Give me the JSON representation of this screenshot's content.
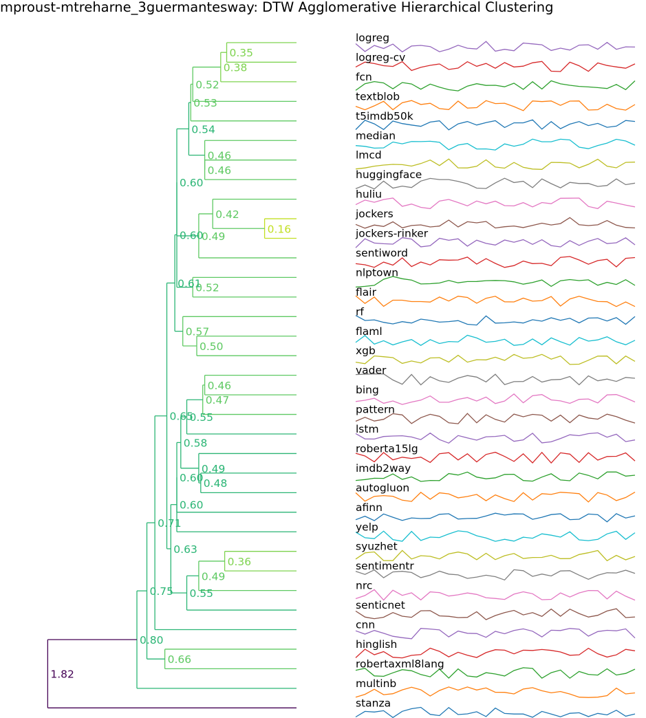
{
  "title": "mproust-mtreharne_3guermantesway: DTW Agglomerative Hierarchical Clustering",
  "chart_data": {
    "type": "dendrogram",
    "title": "mproust-mtreharne_3guermantesway: DTW Agglomerative Hierarchical Clustering",
    "leaves": [
      "logreg",
      "logreg-cv",
      "fcn",
      "textblob",
      "t5imdb50k",
      "median",
      "lmcd",
      "huggingface",
      "huliu",
      "jockers",
      "jockers-rinker",
      "sentiword",
      "nlptown",
      "flair",
      "rf",
      "flaml",
      "xgb",
      "vader",
      "bing",
      "pattern",
      "lstm",
      "roberta15lg",
      "imdb2way",
      "autogluon",
      "afinn",
      "yelp",
      "syuzhet",
      "sentimentr",
      "nrc",
      "senticnet",
      "cnn",
      "hinglish",
      "robertaxml8lang",
      "multinb",
      "stanza"
    ],
    "merges": [
      {
        "id": "N1",
        "a": "logreg",
        "b": "logreg-cv",
        "distance": 0.35,
        "label": "0.35"
      },
      {
        "id": "N2",
        "a": "N1",
        "b": "fcn",
        "distance": 0.38,
        "label": "0.38"
      },
      {
        "id": "N3",
        "a": "N2",
        "b": "textblob",
        "distance": 0.52,
        "label": "0.52"
      },
      {
        "id": "N4",
        "a": "N3",
        "b": "t5imdb50k",
        "distance": 0.53,
        "label": "0.53"
      },
      {
        "id": "N5",
        "a": "lmcd",
        "b": "huggingface",
        "distance": 0.46,
        "label": "0.46"
      },
      {
        "id": "N6",
        "a": "median",
        "b": "N5",
        "distance": 0.46,
        "label": "0.46"
      },
      {
        "id": "N7",
        "a": "N4",
        "b": "N6",
        "distance": 0.54,
        "label": "0.54"
      },
      {
        "id": "N8",
        "a": "jockers",
        "b": "jockers-rinker",
        "distance": 0.16,
        "label": "0.16"
      },
      {
        "id": "N9",
        "a": "huliu",
        "b": "N8",
        "distance": 0.42,
        "label": "0.42"
      },
      {
        "id": "N10",
        "a": "N9",
        "b": "sentiword",
        "distance": 0.49,
        "label": "0.49"
      },
      {
        "id": "N11",
        "a": "N7",
        "b": "N10",
        "distance": 0.6,
        "label": "0.60"
      },
      {
        "id": "N12",
        "a": "nlptown",
        "b": "flair",
        "distance": 0.52,
        "label": "0.52"
      },
      {
        "id": "N13",
        "a": "N11",
        "b": "N12",
        "distance": 0.6,
        "label": "0.60"
      },
      {
        "id": "N14",
        "a": "flaml",
        "b": "xgb",
        "distance": 0.5,
        "label": "0.50"
      },
      {
        "id": "N15",
        "a": "rf",
        "b": "N14",
        "distance": 0.57,
        "label": "0.57"
      },
      {
        "id": "N16",
        "a": "N13",
        "b": "N15",
        "distance": 0.61,
        "label": "0.61"
      },
      {
        "id": "N17",
        "a": "vader",
        "b": "bing",
        "distance": 0.46,
        "label": "0.46"
      },
      {
        "id": "N18",
        "a": "N17",
        "b": "pattern",
        "distance": 0.47,
        "label": "0.47"
      },
      {
        "id": "N19",
        "a": "N18",
        "b": "lstm",
        "distance": 0.55,
        "label": "0.55"
      },
      {
        "id": "N20",
        "a": "imdb2way",
        "b": "autogluon",
        "distance": 0.48,
        "label": "0.48"
      },
      {
        "id": "N21",
        "a": "roberta15lg",
        "b": "N20",
        "distance": 0.49,
        "label": "0.49"
      },
      {
        "id": "N22",
        "a": "N19",
        "b": "N21",
        "distance": 0.58,
        "label": "0.58"
      },
      {
        "id": "N23",
        "a": "N22",
        "b": "afinn",
        "distance": 0.6,
        "label": "0.60"
      },
      {
        "id": "N24",
        "a": "N23",
        "b": "yelp",
        "distance": 0.6,
        "label": "0.60"
      },
      {
        "id": "N25",
        "a": "syuzhet",
        "b": "sentimentr",
        "distance": 0.36,
        "label": "0.36"
      },
      {
        "id": "N26",
        "a": "N25",
        "b": "nrc",
        "distance": 0.49,
        "label": "0.49"
      },
      {
        "id": "N27",
        "a": "N26",
        "b": "senticnet",
        "distance": 0.55,
        "label": "0.55"
      },
      {
        "id": "N28",
        "a": "N24",
        "b": "N27",
        "distance": 0.63,
        "label": "0.63"
      },
      {
        "id": "N29",
        "a": "N16",
        "b": "N28",
        "distance": 0.65,
        "label": "0.65"
      },
      {
        "id": "N30",
        "a": "N29",
        "b": "cnn",
        "distance": 0.71,
        "label": "0.71"
      },
      {
        "id": "N31",
        "a": "hinglish",
        "b": "robertaxml8lang",
        "distance": 0.66,
        "label": "0.66"
      },
      {
        "id": "N32",
        "a": "N30",
        "b": "N31",
        "distance": 0.75,
        "label": "0.75"
      },
      {
        "id": "N33",
        "a": "N32",
        "b": "multinb",
        "distance": 0.8,
        "label": "0.80"
      },
      {
        "id": "N34",
        "a": "N33",
        "b": "stanza",
        "distance": 1.82,
        "label": "1.82"
      }
    ],
    "colors": {
      "main": "#2ab574",
      "light_green": "#7ed34f",
      "mid_green": "#5ec962",
      "yellow_green": "#c2df23",
      "root": "#440154",
      "leaf_line_palette": [
        "#9467bd",
        "#d62728",
        "#2ca02c",
        "#ff7f0e",
        "#1f77b4",
        "#17becf",
        "#bcbd22",
        "#7f7f7f",
        "#e377c2",
        "#8c564b"
      ]
    },
    "node_colors": {
      "N1": "light_green",
      "N2": "light_green",
      "N3": "mid_green",
      "N4": "mid_green",
      "N5": "mid_green",
      "N6": "mid_green",
      "N8": "yellow_green",
      "N9": "mid_green",
      "N10": "mid_green",
      "N12": "mid_green",
      "N14": "mid_green",
      "N15": "mid_green",
      "N17": "mid_green",
      "N18": "mid_green",
      "N25": "light_green",
      "N26": "mid_green",
      "N31": "mid_green",
      "N34": "root"
    },
    "line_series_seeds": [
      3,
      7,
      11,
      13,
      17,
      19,
      23,
      29,
      31,
      37,
      41,
      43,
      47,
      53,
      59,
      61,
      67,
      71,
      73,
      79,
      83,
      89,
      97,
      101,
      103,
      107,
      109,
      113,
      127,
      131,
      137,
      139,
      149,
      151,
      157
    ]
  }
}
